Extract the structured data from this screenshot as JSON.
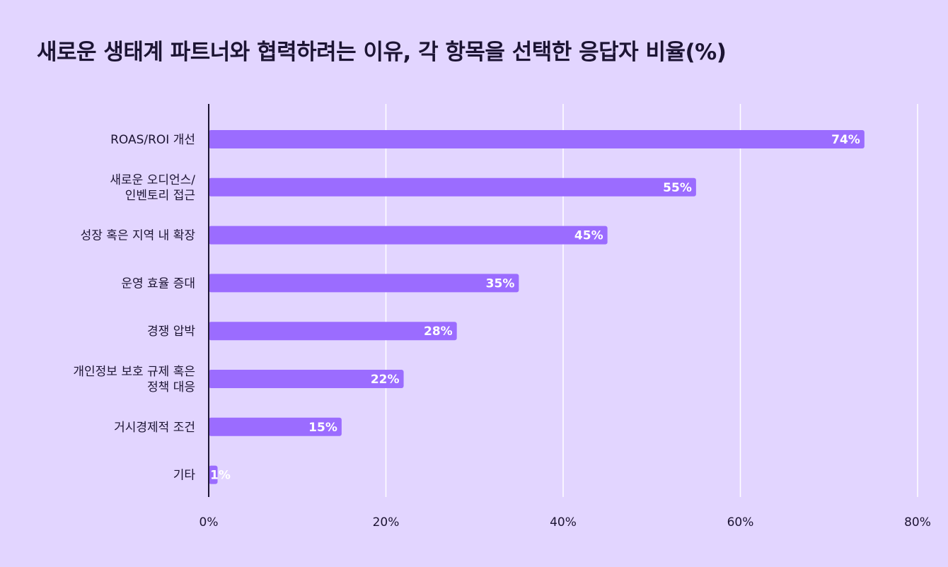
{
  "chart_data": {
    "type": "bar",
    "orientation": "horizontal",
    "title": "새로운 생태계 파트너와 협력하려는 이유, 각 항목을 선택한 응답자 비율(%)",
    "categories": [
      "ROAS/ROI 개선",
      "새로운 오디언스/\n인벤토리 접근",
      "성장 혹은 지역 내 확장",
      "운영 효율 증대",
      "경쟁 압박",
      "개인정보 보호 규제 혹은\n정책 대응",
      "거시경제적 조건",
      "기타"
    ],
    "values": [
      74,
      55,
      45,
      35,
      28,
      22,
      15,
      1
    ],
    "value_labels": [
      "74%",
      "55%",
      "45%",
      "35%",
      "28%",
      "22%",
      "15%",
      "1%"
    ],
    "x_ticks": [
      0,
      20,
      40,
      60,
      80
    ],
    "x_tick_labels": [
      "0%",
      "20%",
      "40%",
      "60%",
      "80%"
    ],
    "xlim": [
      0,
      80
    ],
    "grid": true,
    "xlabel": "",
    "ylabel": "",
    "colors": {
      "bar": "#9b6cff",
      "background": "#e2d5ff",
      "grid": "#ffffff",
      "axis": "#1c1433"
    }
  }
}
